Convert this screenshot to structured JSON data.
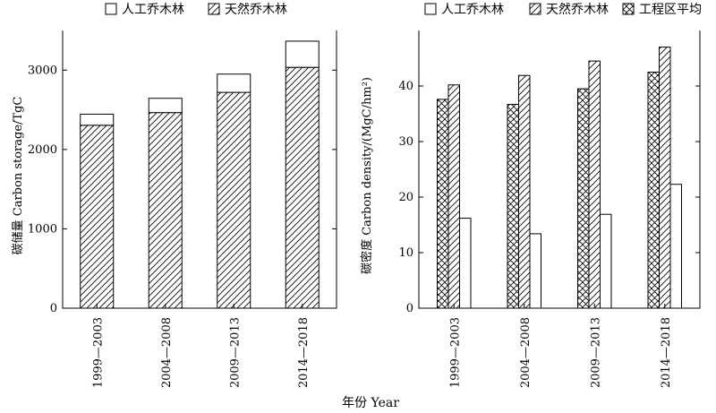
{
  "figure": {
    "x_caption": "年份 Year"
  },
  "chart_data": [
    {
      "type": "bar",
      "stacked": true,
      "categories": [
        "1999—2003",
        "2004—2008",
        "2009—2013",
        "2014—2018"
      ],
      "series": [
        {
          "name": "天然乔木林",
          "values": [
            2305,
            2465,
            2720,
            3035
          ],
          "pattern": "diagonal-hatch"
        },
        {
          "name": "人工乔木林",
          "values": [
            140,
            180,
            230,
            330
          ],
          "pattern": "blank"
        }
      ],
      "totals": [
        2445,
        2645,
        2950,
        3365
      ],
      "ylabel": "碳储量 Carbon storage/TgC",
      "xlabel": "",
      "ylim": [
        0,
        3500
      ],
      "yticks": [
        0,
        1000,
        2000,
        3000
      ],
      "legend": "top-center",
      "grid": false
    },
    {
      "type": "bar",
      "stacked": false,
      "categories": [
        "1999—2003",
        "2004—2008",
        "2009—2013",
        "2014—2018"
      ],
      "series": [
        {
          "name": "工程区平均",
          "values": [
            37.6,
            36.7,
            39.5,
            42.5
          ],
          "pattern": "cross-hatch"
        },
        {
          "name": "天然乔木林",
          "values": [
            40.2,
            41.9,
            44.5,
            47.0
          ],
          "pattern": "diagonal-hatch"
        },
        {
          "name": "人工乔木林",
          "values": [
            16.2,
            13.4,
            16.9,
            22.3
          ],
          "pattern": "blank"
        }
      ],
      "ylabel": "碳密度 Carbon density/(MgC/hm²)",
      "xlabel": "",
      "ylim": [
        0,
        50
      ],
      "yticks": [
        0,
        10,
        20,
        30,
        40
      ],
      "legend": "top-center",
      "grid": false
    }
  ]
}
